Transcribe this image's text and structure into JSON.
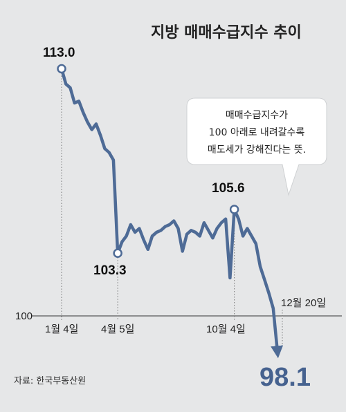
{
  "chart_data": {
    "type": "line",
    "title": "지방 매매수급지수 추이",
    "source": "자료: 한국부동산원",
    "note_lines": [
      "매매수급지수가",
      "100 아래로 내려갈수록",
      "매도세가 강해진다는 뜻."
    ],
    "reference_line": {
      "value": 100,
      "label": "100"
    },
    "x_ticks": [
      "1월 4일",
      "4월 5일",
      "10월 4일",
      "12월 20일"
    ],
    "annotations": {
      "start": "113.0",
      "low": "103.3",
      "peak": "105.6",
      "end": "98.1"
    },
    "colors": {
      "line": "#4e6b96",
      "end_label": "#46628f",
      "background": "#e6e7e8"
    },
    "series": [
      {
        "values": [
          113.0,
          112.2,
          112.0,
          111.2,
          111.3,
          110.7,
          110.2,
          109.8,
          110.1,
          109.5,
          108.8,
          108.6,
          108.2,
          103.3,
          103.9,
          104.2,
          104.8,
          104.4,
          104.6,
          104.0,
          103.5,
          104.2,
          104.4,
          104.5,
          104.7,
          104.8,
          105.0,
          104.6,
          103.4,
          104.3,
          104.5,
          104.4,
          104.2,
          104.9,
          104.5,
          104.1,
          104.6,
          104.9,
          105.1,
          102.0,
          105.6,
          105.1,
          104.2,
          104.6,
          104.2,
          103.8,
          102.6,
          101.9,
          101.2,
          100.4,
          98.1
        ]
      }
    ]
  }
}
